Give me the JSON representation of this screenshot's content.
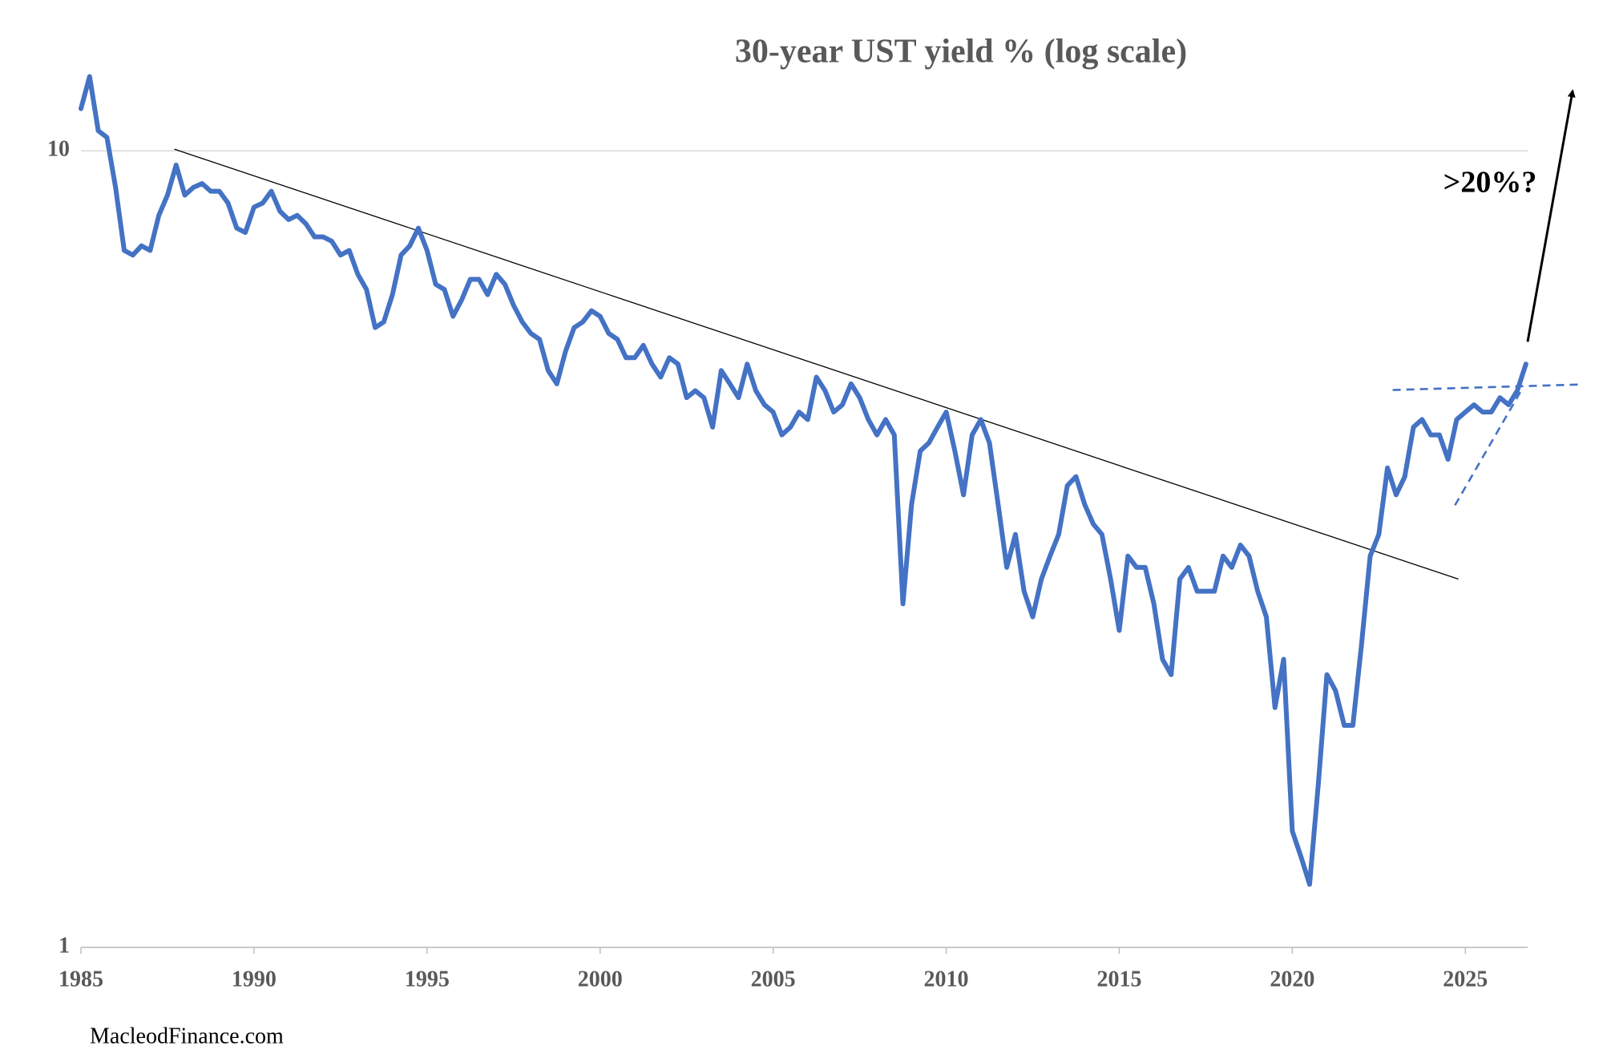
{
  "chart_data": {
    "type": "line",
    "title": "30-year UST yield % (log scale)",
    "x": [
      1985,
      1985.25,
      1985.5,
      1985.75,
      1986,
      1986.25,
      1986.5,
      1986.75,
      1987,
      1987.25,
      1987.5,
      1987.75,
      1988,
      1988.25,
      1988.5,
      1988.75,
      1989,
      1989.25,
      1989.5,
      1989.75,
      1990,
      1990.25,
      1990.5,
      1990.75,
      1991,
      1991.25,
      1991.5,
      1991.75,
      1992,
      1992.25,
      1992.5,
      1992.75,
      1993,
      1993.25,
      1993.5,
      1993.75,
      1994,
      1994.25,
      1994.5,
      1994.75,
      1995,
      1995.25,
      1995.5,
      1995.75,
      1996,
      1996.25,
      1996.5,
      1996.75,
      1997,
      1997.25,
      1997.5,
      1997.75,
      1998,
      1998.25,
      1998.5,
      1998.75,
      1999,
      1999.25,
      1999.5,
      1999.75,
      2000,
      2000.25,
      2000.5,
      2000.75,
      2001,
      2001.25,
      2001.5,
      2001.75,
      2002,
      2002.25,
      2002.5,
      2002.75,
      2003,
      2003.25,
      2003.5,
      2003.75,
      2004,
      2004.25,
      2004.5,
      2004.75,
      2005,
      2005.25,
      2005.5,
      2005.75,
      2006,
      2006.25,
      2006.5,
      2006.75,
      2007,
      2007.25,
      2007.5,
      2007.75,
      2008,
      2008.25,
      2008.5,
      2008.75,
      2009,
      2009.25,
      2009.5,
      2009.75,
      2010,
      2010.25,
      2010.5,
      2010.75,
      2011,
      2011.25,
      2011.5,
      2011.75,
      2012,
      2012.25,
      2012.5,
      2012.75,
      2013,
      2013.25,
      2013.5,
      2013.75,
      2014,
      2014.25,
      2014.5,
      2014.75,
      2015,
      2015.25,
      2015.5,
      2015.75,
      2016,
      2016.25,
      2016.5,
      2016.75,
      2017,
      2017.25,
      2017.5,
      2017.75,
      2018,
      2018.25,
      2018.5,
      2018.75,
      2019,
      2019.25,
      2019.5,
      2019.75,
      2020,
      2020.25,
      2020.5,
      2020.75,
      2021,
      2021.25,
      2021.5,
      2021.75,
      2022,
      2022.25,
      2022.5,
      2022.75,
      2023,
      2023.25,
      2023.5,
      2023.75,
      2024,
      2024.25,
      2024.5,
      2024.75,
      2025,
      2025.25,
      2025.5,
      2025.75,
      2026,
      2026.25,
      2026.5,
      2026.75
    ],
    "series": [
      {
        "color": "#4472c4",
        "values": [
          11.3,
          12.4,
          10.6,
          10.4,
          9.0,
          7.5,
          7.4,
          7.6,
          7.5,
          8.3,
          8.8,
          9.6,
          8.8,
          9.0,
          9.1,
          8.9,
          8.9,
          8.6,
          8.0,
          7.9,
          8.5,
          8.6,
          8.9,
          8.4,
          8.2,
          8.3,
          8.1,
          7.8,
          7.8,
          7.7,
          7.4,
          7.5,
          7.0,
          6.7,
          6.0,
          6.1,
          6.6,
          7.4,
          7.6,
          8.0,
          7.5,
          6.8,
          6.7,
          6.2,
          6.5,
          6.9,
          6.9,
          6.6,
          7.0,
          6.8,
          6.4,
          6.1,
          5.9,
          5.8,
          5.3,
          5.1,
          5.6,
          6.0,
          6.1,
          6.3,
          6.2,
          5.9,
          5.8,
          5.5,
          5.5,
          5.7,
          5.4,
          5.2,
          5.5,
          5.4,
          4.9,
          5.0,
          4.9,
          4.5,
          5.3,
          5.1,
          4.9,
          5.4,
          5.0,
          4.8,
          4.7,
          4.4,
          4.5,
          4.7,
          4.6,
          5.2,
          5.0,
          4.7,
          4.8,
          5.1,
          4.9,
          4.6,
          4.4,
          4.6,
          4.4,
          2.7,
          3.6,
          4.2,
          4.3,
          4.5,
          4.7,
          4.2,
          3.7,
          4.4,
          4.6,
          4.3,
          3.6,
          3.0,
          3.3,
          2.8,
          2.6,
          2.9,
          3.1,
          3.3,
          3.8,
          3.9,
          3.6,
          3.4,
          3.3,
          2.9,
          2.5,
          3.1,
          3.0,
          3.0,
          2.7,
          2.3,
          2.2,
          2.9,
          3.0,
          2.8,
          2.8,
          2.8,
          3.1,
          3.0,
          3.2,
          3.1,
          2.8,
          2.6,
          2.0,
          2.3,
          1.4,
          1.3,
          1.2,
          1.6,
          2.2,
          2.1,
          1.9,
          1.9,
          2.4,
          3.1,
          3.3,
          4.0,
          3.7,
          3.9,
          4.5,
          4.6,
          4.4,
          4.4,
          4.1,
          4.6,
          4.7,
          4.8,
          4.7,
          4.7,
          4.9,
          4.8,
          5.0,
          5.4
        ]
      }
    ],
    "xlim": [
      1985,
      2026.8
    ],
    "xticks": [
      1985,
      1990,
      1995,
      2000,
      2005,
      2010,
      2015,
      2020,
      2025
    ],
    "ylim": [
      1,
      12.5
    ],
    "yticks": [
      1,
      10
    ],
    "log_scale": true,
    "grid": true,
    "annotation_lines": [
      {
        "style": "solid",
        "color": "#000000",
        "x": [
          1987.7,
          2024.8
        ],
        "y": [
          10.05,
          2.9
        ]
      },
      {
        "style": "dashed",
        "color": "#4472c4",
        "x": [
          2022.9,
          2028.3
        ],
        "y": [
          5.01,
          5.09
        ]
      },
      {
        "style": "dashed",
        "color": "#4472c4",
        "x": [
          2024.7,
          2026.6
        ],
        "y": [
          3.59,
          4.99
        ]
      }
    ],
    "arrow": {
      "color": "#000000",
      "x": [
        2026.8,
        2028.1
      ],
      "y": [
        5.76,
        11.9
      ]
    },
    "annotation": ">20%?",
    "source": "MacleodFinance.com"
  }
}
